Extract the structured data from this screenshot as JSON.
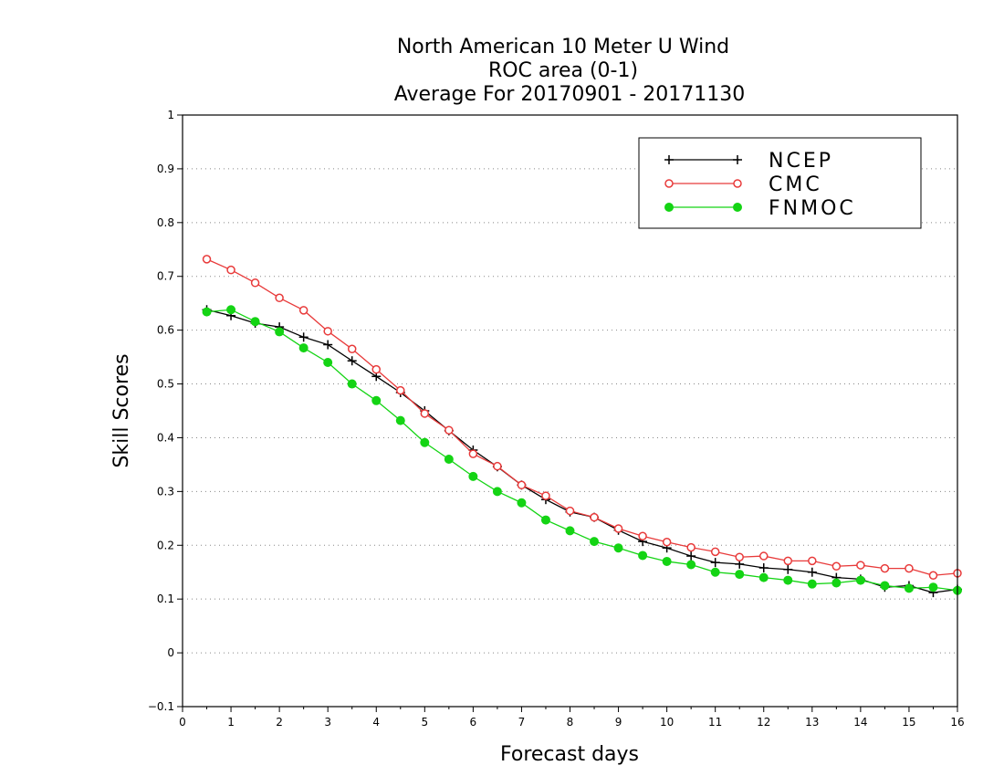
{
  "chart_data": {
    "type": "line",
    "title_lines": [
      "North American 10 Meter U Wind",
      "ROC area (0-1)",
      "Average For 20170901 - 20171130"
    ],
    "xlabel": "Forecast days",
    "ylabel": "Skill Scores",
    "xlim": [
      0,
      16
    ],
    "ylim": [
      -0.1,
      1
    ],
    "x_ticks": [
      "0",
      "1",
      "2",
      "3",
      "4",
      "5",
      "6",
      "7",
      "8",
      "9",
      "10",
      "11",
      "12",
      "13",
      "14",
      "15",
      "16"
    ],
    "y_ticks": [
      "−0.1",
      "0",
      "0.1",
      "0.2",
      "0.3",
      "0.4",
      "0.5",
      "0.6",
      "0.7",
      "0.8",
      "0.9",
      "1"
    ],
    "grid": "horizontal dotted",
    "legend_position": "top-right",
    "x": [
      0.5,
      1,
      1.5,
      2,
      2.5,
      3,
      3.5,
      4,
      4.5,
      5,
      5.5,
      6,
      6.5,
      7,
      7.5,
      8,
      8.5,
      9,
      9.5,
      10,
      10.5,
      11,
      11.5,
      12,
      12.5,
      13,
      13.5,
      14,
      14.5,
      15,
      15.5,
      16
    ],
    "series": [
      {
        "name": "NCEP",
        "color": "#000000",
        "marker": "plus",
        "values": [
          0.638,
          0.627,
          0.613,
          0.606,
          0.587,
          0.573,
          0.543,
          0.514,
          0.484,
          0.45,
          0.413,
          0.377,
          0.346,
          0.312,
          0.285,
          0.262,
          0.252,
          0.228,
          0.207,
          0.195,
          0.18,
          0.168,
          0.165,
          0.158,
          0.155,
          0.15,
          0.14,
          0.137,
          0.122,
          0.125,
          0.112,
          0.118
        ]
      },
      {
        "name": "CMC",
        "color": "#e83a3a",
        "marker": "open-circle",
        "values": [
          0.732,
          0.712,
          0.688,
          0.66,
          0.637,
          0.598,
          0.565,
          0.527,
          0.488,
          0.445,
          0.414,
          0.37,
          0.347,
          0.312,
          0.292,
          0.264,
          0.252,
          0.231,
          0.217,
          0.206,
          0.196,
          0.188,
          0.178,
          0.18,
          0.171,
          0.171,
          0.161,
          0.163,
          0.157,
          0.157,
          0.144,
          0.148
        ]
      },
      {
        "name": "FNMOC",
        "color": "#14d414",
        "marker": "filled-circle",
        "values": [
          0.634,
          0.638,
          0.616,
          0.597,
          0.567,
          0.54,
          0.5,
          0.469,
          0.432,
          0.391,
          0.36,
          0.328,
          0.3,
          0.279,
          0.247,
          0.227,
          0.207,
          0.195,
          0.181,
          0.17,
          0.164,
          0.15,
          0.146,
          0.14,
          0.135,
          0.128,
          0.13,
          0.135,
          0.125,
          0.12,
          0.122,
          0.116
        ]
      }
    ]
  }
}
